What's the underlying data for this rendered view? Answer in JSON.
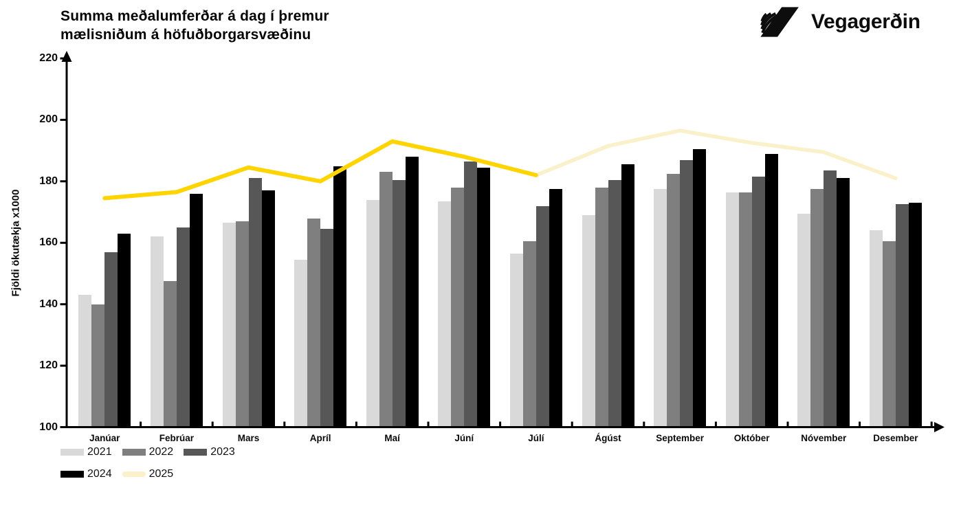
{
  "header": {
    "title_line1": "Summa meðalumferðar á dag í þremur",
    "title_line2": "mælisniðum á höfuðborgarsvæðinu",
    "brand": "Vegagerðin"
  },
  "chart_data": {
    "type": "bar+line",
    "title": "Summa meðalumferðar á dag í þremur mælisniðum á höfuðborgarsvæðinu",
    "xlabel": "",
    "ylabel": "Fjöldi ökutækja x1000",
    "ylim": [
      100,
      220
    ],
    "yticks": [
      100,
      120,
      140,
      160,
      180,
      200,
      220
    ],
    "grid": false,
    "legend_position": "bottom-left",
    "categories": [
      "Janúar",
      "Febrúar",
      "Mars",
      "Apríl",
      "Maí",
      "Júní",
      "Júlí",
      "Ágúst",
      "September",
      "Október",
      "Nóvember",
      "Desember"
    ],
    "series": [
      {
        "name": "2021",
        "type": "bar",
        "color": "#d9d9d9",
        "values": [
          143,
          162,
          166.5,
          154.5,
          174,
          173.5,
          156.5,
          169,
          177.5,
          176.5,
          169.5,
          164
        ]
      },
      {
        "name": "2022",
        "type": "bar",
        "color": "#7f7f7f",
        "values": [
          140,
          147.5,
          167,
          168,
          183,
          178,
          160.5,
          178,
          182.5,
          176.5,
          177.5,
          160.5
        ]
      },
      {
        "name": "2023",
        "type": "bar",
        "color": "#575757",
        "values": [
          157,
          165,
          181,
          164.5,
          180.5,
          186.5,
          172,
          180.5,
          187,
          181.5,
          183.5,
          172.5
        ]
      },
      {
        "name": "2024",
        "type": "bar",
        "color": "#000000",
        "values": [
          163,
          176,
          177,
          185,
          188,
          184.5,
          177.5,
          185.5,
          190.5,
          189,
          181,
          173
        ]
      },
      {
        "name": "2025",
        "type": "line",
        "legend_color": "#faf0c9",
        "segments": [
          {
            "color": "#ffd400",
            "from": 0,
            "to": 6
          },
          {
            "color": "#faf0c9",
            "from": 6,
            "to": 11
          }
        ],
        "values": [
          174.5,
          176.5,
          184.5,
          180,
          193,
          188,
          182,
          191.5,
          196.5,
          192.5,
          189.5,
          181
        ]
      }
    ]
  }
}
